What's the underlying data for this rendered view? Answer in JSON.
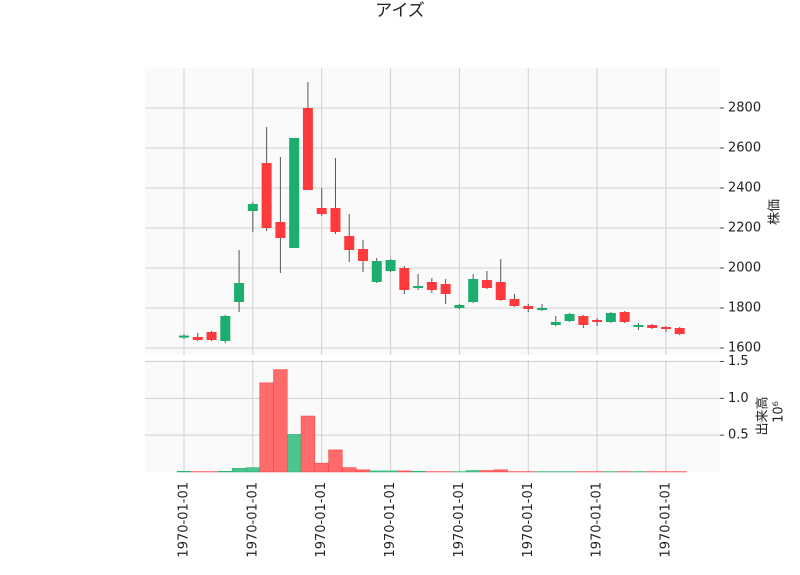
{
  "chart_data": {
    "type": "candlestick",
    "title": "アイズ",
    "ylabel": "株価",
    "volume_label": "出来高",
    "volume_scale_label": "10⁶",
    "categories": [
      "1970-01-01",
      null,
      null,
      null,
      null,
      "1970-01-01",
      null,
      null,
      null,
      null,
      "1970-01-01",
      null,
      null,
      null,
      null,
      "1970-01-01",
      null,
      null,
      null,
      null,
      "1970-01-01",
      null,
      null,
      null,
      null,
      "1970-01-01",
      null,
      null,
      null,
      null,
      "1970-01-01",
      null,
      null,
      null,
      null,
      "1970-01-01",
      null
    ],
    "open": [
      1652,
      1655,
      1680,
      1635,
      1830,
      2285,
      2525,
      2230,
      2100,
      2800,
      2300,
      2300,
      2160,
      2095,
      1930,
      1985,
      2000,
      1900,
      1930,
      1920,
      1800,
      1830,
      1940,
      1930,
      1845,
      1810,
      1790,
      1715,
      1735,
      1760,
      1740,
      1730,
      1780,
      1705,
      1715,
      1705,
      1700
    ],
    "high": [
      1670,
      1675,
      1685,
      1765,
      2090,
      2330,
      2705,
      2555,
      2650,
      2930,
      2400,
      2550,
      2270,
      2140,
      2050,
      2045,
      2010,
      1970,
      1950,
      1945,
      1820,
      1970,
      1985,
      2045,
      1870,
      1820,
      1820,
      1760,
      1775,
      1765,
      1750,
      1780,
      1785,
      1725,
      1720,
      1710,
      1705
    ],
    "low": [
      1645,
      1635,
      1635,
      1625,
      1780,
      2180,
      2185,
      1975,
      2100,
      2390,
      2260,
      2170,
      2030,
      1980,
      1925,
      1980,
      1870,
      1890,
      1875,
      1820,
      1795,
      1825,
      1895,
      1835,
      1805,
      1780,
      1785,
      1710,
      1730,
      1700,
      1710,
      1725,
      1725,
      1690,
      1695,
      1680,
      1665
    ],
    "close": [
      1662,
      1640,
      1640,
      1760,
      1925,
      2320,
      2200,
      2150,
      2650,
      2390,
      2270,
      2180,
      2090,
      2035,
      2035,
      2040,
      1890,
      1910,
      1890,
      1870,
      1815,
      1945,
      1900,
      1840,
      1810,
      1795,
      1800,
      1730,
      1770,
      1715,
      1730,
      1775,
      1730,
      1715,
      1700,
      1695,
      1670
    ],
    "volume": [
      0.01,
      0.005,
      0.005,
      0.01,
      0.05,
      0.06,
      1.21,
      1.39,
      0.51,
      0.76,
      0.12,
      0.3,
      0.06,
      0.03,
      0.015,
      0.015,
      0.015,
      0.01,
      0.005,
      0.005,
      0.005,
      0.02,
      0.02,
      0.03,
      0.005,
      0.005,
      0.005,
      0.005,
      0.005,
      0.005,
      0.005,
      0.005,
      0.005,
      0.005,
      0.005,
      0.005,
      0.005
    ],
    "ylim": [
      1565,
      3000
    ],
    "yticks": [
      1600,
      1800,
      2000,
      2200,
      2400,
      2600,
      2800
    ],
    "volume_ylim": [
      0,
      1.52
    ],
    "volume_yticks": [
      0.5,
      {
        "value": 1,
        "label": "1.0"
      },
      1.5
    ],
    "up_color": "#1cae6e",
    "down_color": "#fe3a3d",
    "up_volume_color": "#4cc48e",
    "down_volume_color": "#ff6a6b",
    "wick_color": "#555555",
    "grid": true
  }
}
